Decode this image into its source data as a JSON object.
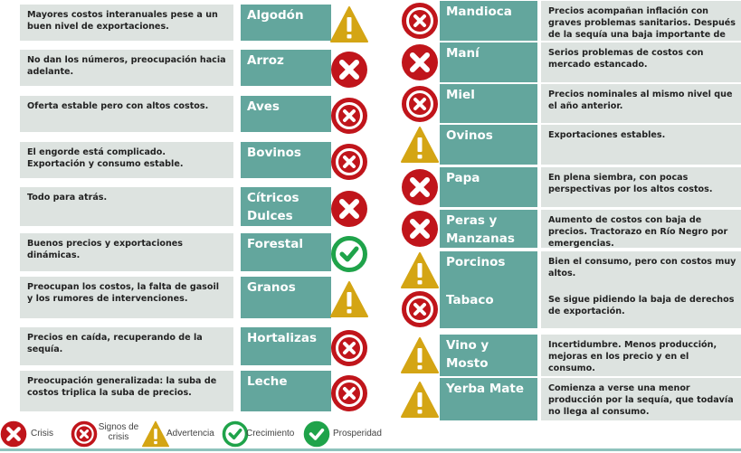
{
  "colors": {
    "crisis": "#c0151b",
    "warning": "#d4a514",
    "growth": "#1fa34a",
    "name_box": "#63a69d",
    "desc_box": "#dde3e0"
  },
  "left": [
    {
      "name": "Algodón",
      "desc": "Mayores costos interanuales pese a un buen nivel de exportaciones.",
      "status": "warning-icon"
    },
    {
      "name": "Arroz",
      "desc": "No dan los números, preocupación hacia adelante.",
      "status": "crisis-icon"
    },
    {
      "name": "Aves",
      "desc": "Oferta estable pero con altos costos.",
      "status": "signs-of-crisis-icon"
    },
    {
      "name": "Bovinos",
      "desc": "El engorde está complicado. Exportación y consumo estable.",
      "status": "signs-of-crisis-icon"
    },
    {
      "name": "Cítricos Dulces",
      "desc": "Todo para atrás.",
      "status": "crisis-icon"
    },
    {
      "name": "Forestal",
      "desc": "Buenos precios y exportaciones dinámicas.",
      "status": "growth-icon"
    },
    {
      "name": "Granos",
      "desc": "Preocupan los costos, la falta de gasoil y los rumores de intervenciones.",
      "status": "warning-icon"
    },
    {
      "name": "Hortalizas",
      "desc": "Precios en caída, recuperando de la sequía.",
      "status": "signs-of-crisis-icon"
    },
    {
      "name": "Leche",
      "desc": "Preocupación generalizada:  la suba de costos triplica la suba de precios.",
      "status": "signs-of-crisis-icon"
    }
  ],
  "right": [
    {
      "name": "Mandioca",
      "desc": "Precios acompañan inflación con graves problemas sanitarios. Después de la sequía una baja importante de producción.",
      "status": "signs-of-crisis-icon"
    },
    {
      "name": "Maní",
      "desc": "Serios problemas de costos con mercado estancado.",
      "status": "crisis-icon"
    },
    {
      "name": "Miel",
      "desc": "Precios nominales al mismo nivel que el año anterior.",
      "status": "signs-of-crisis-icon"
    },
    {
      "name": "Ovinos",
      "desc": "Exportaciones estables.",
      "status": "warning-icon"
    },
    {
      "name": "Papa",
      "desc": "En plena siembra, con pocas perspectivas por los altos costos.",
      "status": "crisis-icon"
    },
    {
      "name": "Peras y Manzanas",
      "desc": "Aumento de costos con baja de precios. Tractorazo en Río Negro por emergencias.",
      "status": "crisis-icon"
    },
    {
      "name": "Porcinos",
      "desc": "Bien el consumo, pero con costos muy altos.",
      "status": "warning-icon"
    },
    {
      "name": "Tabaco",
      "desc": "Se sigue pidiendo la baja de derechos de exportación.",
      "status": "signs-of-crisis-icon"
    },
    {
      "name": "Vino y Mosto",
      "desc": "Incertidumbre. Menos producción, mejoras en los precio y en el consumo.",
      "status": "warning-icon"
    },
    {
      "name": "Yerba Mate",
      "desc": "Comienza a verse una menor producción por la sequía, que todavía no llega al consumo.",
      "status": "warning-icon"
    }
  ],
  "legend": [
    {
      "label": "Crisis",
      "icon": "crisis-icon"
    },
    {
      "label": "Signos de crisis",
      "icon": "signs-of-crisis-icon"
    },
    {
      "label": "Advertencia",
      "icon": "warning-icon"
    },
    {
      "label": "Crecimiento",
      "icon": "growth-icon"
    },
    {
      "label": "Prosperidad",
      "icon": "prosperity-icon"
    }
  ]
}
